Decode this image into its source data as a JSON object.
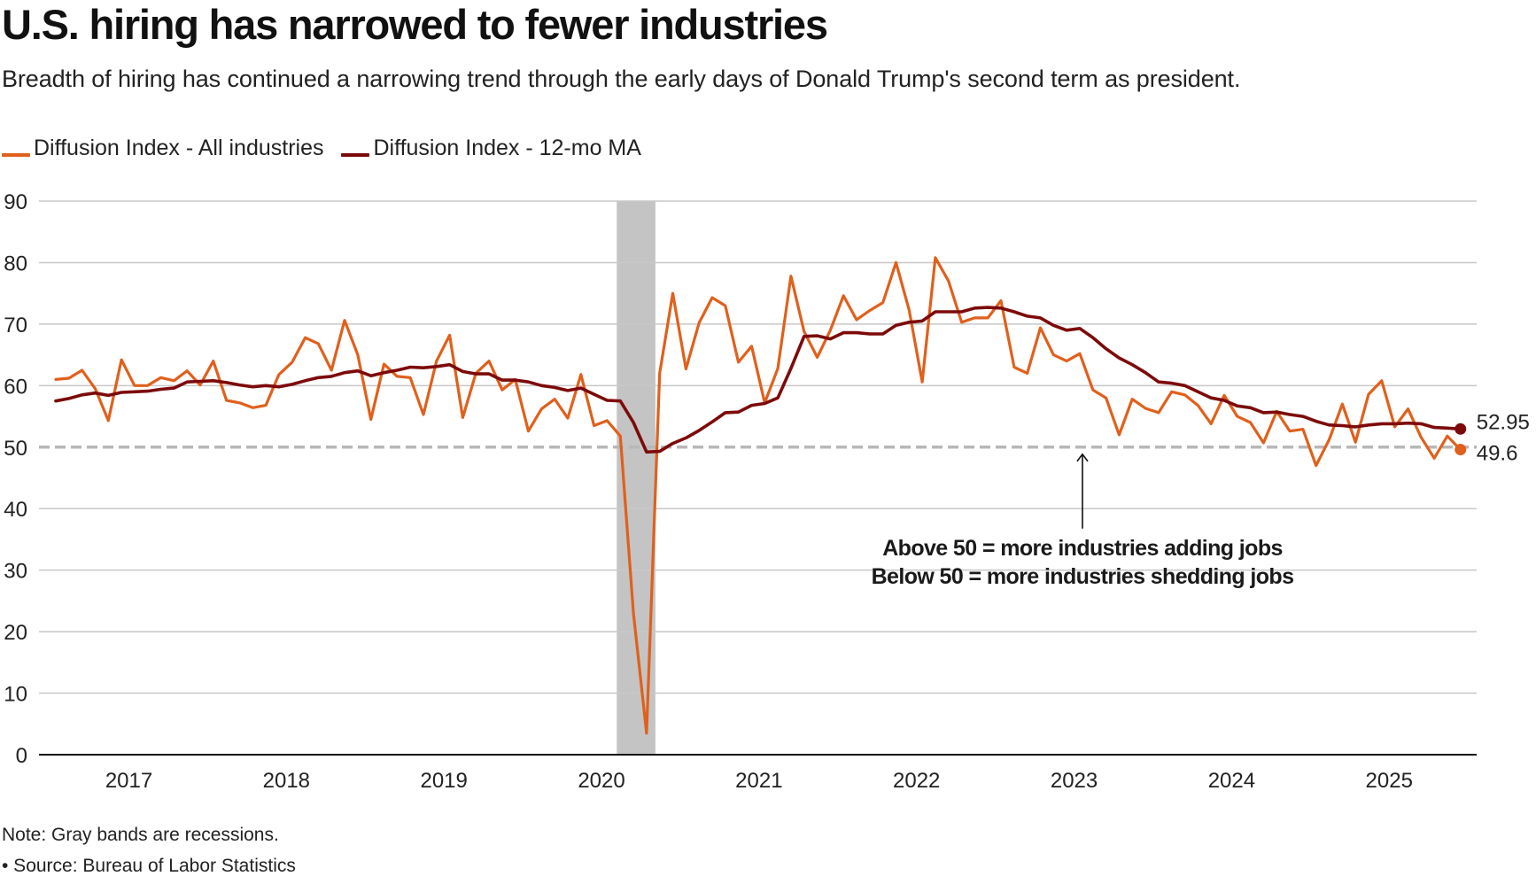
{
  "header": {
    "title": "U.S. hiring has narrowed to fewer industries",
    "subtitle": "Breadth of hiring has continued a narrowing trend through the early days of Donald Trump's second term as president."
  },
  "footer": {
    "note": "Note: Gray bands are recessions.",
    "source": "• Source: Bureau of Labor Statistics"
  },
  "colors": {
    "all_industries": "#e0601c",
    "ma_12": "#7d0a0a",
    "recession": "#c4c4c4",
    "grid": "#c8c8c8",
    "reference": "#b8b8b8"
  },
  "chart_data": {
    "type": "line",
    "title": "U.S. hiring has narrowed to fewer industries",
    "xlabel": "",
    "ylabel": "",
    "ylim": [
      0,
      90
    ],
    "yticks": [
      0,
      10,
      20,
      30,
      40,
      50,
      60,
      70,
      80,
      90
    ],
    "ytick_labels": [
      "0",
      "10",
      "20",
      "30",
      "40",
      "50",
      "60",
      "70",
      "80",
      "90"
    ],
    "xtick_labels": [
      "2017",
      "2018",
      "2019",
      "2020",
      "2021",
      "2022",
      "2023",
      "2024",
      "2025"
    ],
    "x_start": "2016-07",
    "x_end": "2025-06",
    "frequency": "monthly",
    "grid": true,
    "legend_position": "top-left",
    "reference_line": {
      "value": 50,
      "style": "dashed"
    },
    "recession_bands": [
      {
        "start": "2020-02",
        "end": "2020-04"
      }
    ],
    "annotation": {
      "line1": "Above 50 = more industries adding jobs",
      "line2": "Below 50 = more industries shedding jobs",
      "arrow_points_to": 50
    },
    "series": [
      {
        "name": "Diffusion Index - All industries",
        "end_label": "49.6",
        "values": [
          61.0,
          61.2,
          62.5,
          59.5,
          54.3,
          64.2,
          60.0,
          60.0,
          61.3,
          60.8,
          62.4,
          60.1,
          64.0,
          57.6,
          57.2,
          56.4,
          56.8,
          61.8,
          63.8,
          67.8,
          66.8,
          62.5,
          70.6,
          65.0,
          54.5,
          63.5,
          61.5,
          61.3,
          55.3,
          64.0,
          68.2,
          54.8,
          62.0,
          64.0,
          59.3,
          61.0,
          52.6,
          56.2,
          57.8,
          54.7,
          61.8,
          53.5,
          54.3,
          51.8,
          23.0,
          3.5,
          62.0,
          75.0,
          62.7,
          70.2,
          74.3,
          73.0,
          63.8,
          66.4,
          57.2,
          62.8,
          77.8,
          68.8,
          64.6,
          69.0,
          74.6,
          70.7,
          72.2,
          73.5,
          80.0,
          72.3,
          60.6,
          80.8,
          77.0,
          70.3,
          71.0,
          71.0,
          73.8,
          63.0,
          62.0,
          69.4,
          65.0,
          64.0,
          65.2,
          59.3,
          58.0,
          52.0,
          57.8,
          56.3,
          55.6,
          59.0,
          58.5,
          56.8,
          53.8,
          58.4,
          55.0,
          54.0,
          50.7,
          55.8,
          52.6,
          52.9,
          47.0,
          51.2,
          57.0,
          50.8,
          58.6,
          60.8,
          53.3,
          56.2,
          51.6,
          48.2,
          51.8,
          49.6
        ]
      },
      {
        "name": "Diffusion Index - 12-mo MA",
        "end_label": "52.95",
        "values": [
          57.5,
          57.9,
          58.5,
          58.8,
          58.4,
          58.9,
          59.0,
          59.1,
          59.4,
          59.6,
          60.6,
          60.7,
          60.8,
          60.5,
          60.1,
          59.8,
          60.0,
          59.8,
          60.2,
          60.8,
          61.3,
          61.5,
          62.1,
          62.4,
          61.6,
          62.1,
          62.5,
          63.0,
          62.9,
          63.1,
          63.4,
          62.3,
          61.9,
          61.9,
          60.9,
          60.9,
          60.6,
          60.0,
          59.7,
          59.2,
          59.6,
          58.6,
          57.6,
          57.5,
          54.0,
          49.2,
          49.3,
          50.6,
          51.5,
          52.7,
          54.1,
          55.6,
          55.7,
          56.8,
          57.1,
          58.0,
          62.8,
          68.0,
          68.1,
          67.6,
          68.6,
          68.6,
          68.4,
          68.4,
          69.8,
          70.3,
          70.5,
          72.0,
          72.0,
          72.0,
          72.6,
          72.7,
          72.6,
          72.0,
          71.3,
          71.0,
          69.8,
          69.0,
          69.3,
          67.8,
          66.0,
          64.5,
          63.4,
          62.1,
          60.6,
          60.4,
          60.0,
          59.0,
          58.0,
          57.6,
          56.7,
          56.4,
          55.6,
          55.7,
          55.3,
          55.0,
          54.2,
          53.6,
          53.5,
          53.3,
          53.6,
          53.8,
          53.8,
          53.9,
          53.8,
          53.2,
          53.1,
          52.95
        ]
      }
    ]
  }
}
